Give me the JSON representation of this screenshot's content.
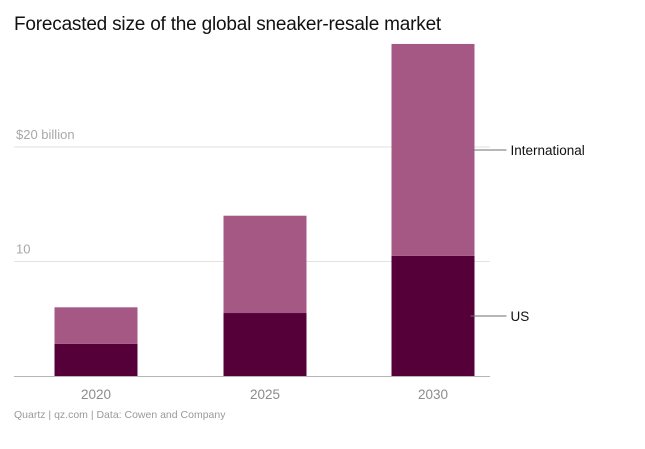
{
  "chart_data": {
    "type": "bar",
    "stacked": true,
    "title": "Forecasted size of the global sneaker-resale market",
    "categories": [
      "2020",
      "2025",
      "2030"
    ],
    "series": [
      {
        "name": "US",
        "values": [
          2.8,
          5.5,
          10.5
        ],
        "color": "#56003a"
      },
      {
        "name": "International",
        "values": [
          3.2,
          8.5,
          18.5
        ],
        "color": "#a55884"
      }
    ],
    "y_ticks": [
      {
        "value": 10,
        "label": "10"
      },
      {
        "value": 20,
        "label": "$20 billion"
      }
    ],
    "ylim": [
      0,
      30
    ],
    "xlabel": "",
    "ylabel": "",
    "legend_placement": "right, labels beside 2030 bar",
    "grid": true,
    "source": "Quartz | qz.com | Data: Cowen and Company"
  }
}
